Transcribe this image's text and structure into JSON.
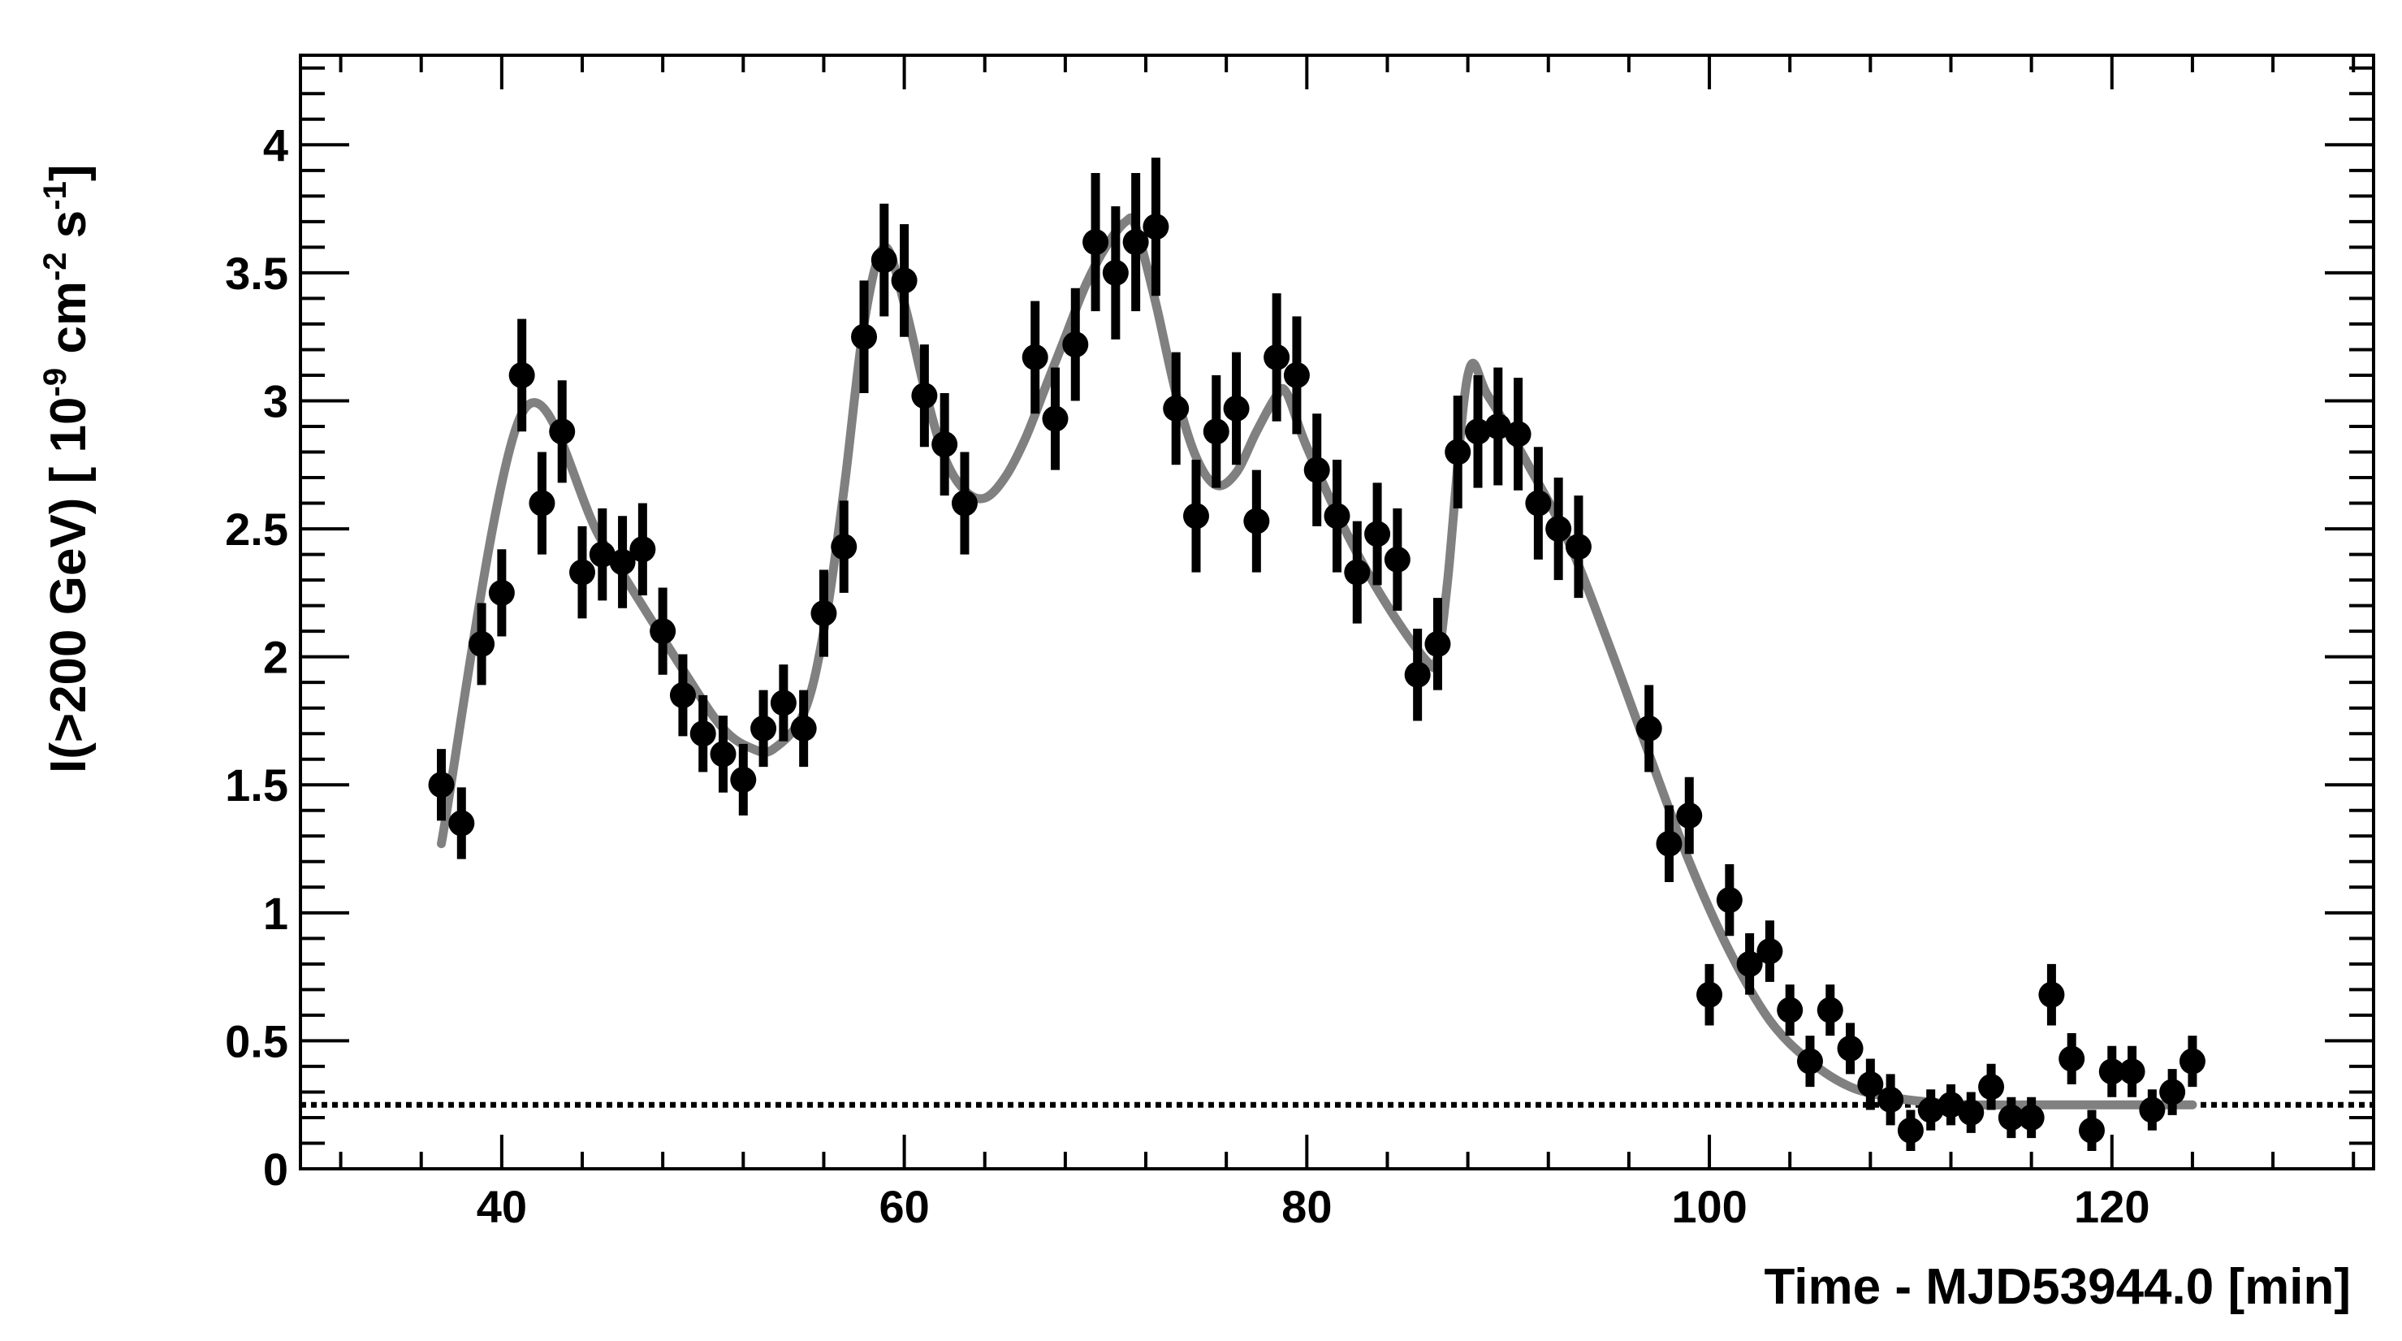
{
  "chart_data": {
    "type": "scatter",
    "xlabel": "Time - MJD53944.0 [min]",
    "ylabel_parts": {
      "prefix": "I(>200 GeV) [ 10",
      "exp1": "-9",
      "mid": " cm",
      "exp2": "-2",
      "mid2": " s",
      "exp3": "-1",
      "suffix": "]"
    },
    "xlim": [
      30,
      133
    ],
    "ylim": [
      0,
      4.35
    ],
    "xticks": [
      40,
      60,
      80,
      100,
      120
    ],
    "xtick_labels": [
      "40",
      "60",
      "80",
      "100",
      "120"
    ],
    "yticks": [
      0,
      0.5,
      1,
      1.5,
      2,
      2.5,
      3,
      3.5,
      4
    ],
    "ytick_labels": [
      "0",
      "0.5",
      "1",
      "1.5",
      "2",
      "2.5",
      "3",
      "3.5",
      "4"
    ],
    "baseline_level": 0.25,
    "series": [
      {
        "kind": "data_points_with_errors",
        "x": [
          37,
          38,
          39,
          40,
          41,
          42,
          43,
          44,
          45,
          46,
          47,
          48,
          49,
          50,
          51,
          52,
          53,
          54,
          55,
          56,
          57,
          58,
          59,
          60,
          61,
          62,
          63,
          66.5,
          67.5,
          68.5,
          69.5,
          70.5,
          71.5,
          72.5,
          73.5,
          74.5,
          75.5,
          76.5,
          77.5,
          78.5,
          79.5,
          80.5,
          81.5,
          82.5,
          83.5,
          84.5,
          85.5,
          86.5,
          87.5,
          88.5,
          89.5,
          90.5,
          91.5,
          92.5,
          93.5,
          97,
          98,
          99,
          100,
          101,
          102,
          103,
          104,
          105,
          106,
          107,
          108,
          109,
          110,
          111,
          112,
          113,
          114,
          115,
          116,
          117,
          118,
          119,
          120,
          121,
          122,
          123,
          124
        ],
        "y": [
          1.5,
          1.35,
          2.05,
          2.25,
          3.1,
          2.6,
          2.88,
          2.33,
          2.4,
          2.37,
          2.42,
          2.1,
          1.85,
          1.7,
          1.62,
          1.52,
          1.72,
          1.82,
          1.72,
          2.17,
          2.43,
          3.25,
          3.55,
          3.47,
          3.02,
          2.83,
          2.6,
          3.17,
          2.93,
          3.22,
          3.62,
          3.5,
          3.62,
          3.68,
          2.97,
          2.55,
          2.88,
          2.97,
          2.53,
          3.17,
          3.1,
          2.73,
          2.55,
          2.33,
          2.48,
          2.38,
          1.93,
          2.05,
          2.8,
          2.88,
          2.9,
          2.87,
          2.6,
          2.5,
          2.43,
          1.72,
          1.27,
          1.38,
          0.68,
          1.05,
          0.8,
          0.85,
          0.62,
          0.42,
          0.62,
          0.47,
          0.33,
          0.27,
          0.15,
          0.23,
          0.25,
          0.22,
          0.32,
          0.2,
          0.2,
          0.68,
          0.43,
          0.15,
          0.38,
          0.38,
          0.23,
          0.3,
          0.42
        ],
        "yerr": [
          0.14,
          0.14,
          0.16,
          0.17,
          0.22,
          0.2,
          0.2,
          0.18,
          0.18,
          0.18,
          0.18,
          0.17,
          0.16,
          0.15,
          0.15,
          0.14,
          0.15,
          0.15,
          0.15,
          0.17,
          0.18,
          0.22,
          0.22,
          0.22,
          0.2,
          0.2,
          0.2,
          0.22,
          0.2,
          0.22,
          0.27,
          0.26,
          0.27,
          0.27,
          0.22,
          0.22,
          0.22,
          0.22,
          0.2,
          0.25,
          0.23,
          0.22,
          0.22,
          0.2,
          0.2,
          0.2,
          0.18,
          0.18,
          0.22,
          0.22,
          0.23,
          0.22,
          0.22,
          0.2,
          0.2,
          0.17,
          0.15,
          0.15,
          0.12,
          0.14,
          0.12,
          0.12,
          0.1,
          0.1,
          0.1,
          0.1,
          0.1,
          0.1,
          0.08,
          0.08,
          0.08,
          0.08,
          0.09,
          0.08,
          0.08,
          0.12,
          0.1,
          0.08,
          0.1,
          0.1,
          0.08,
          0.09,
          0.1
        ]
      },
      {
        "kind": "fit_curve",
        "x": [
          37,
          41,
          45,
          49,
          51,
          52.5,
          53.5,
          55,
          56,
          57,
          58,
          59,
          60,
          61,
          62,
          63,
          64,
          65,
          66,
          67,
          68,
          69,
          70,
          71,
          71.5,
          72.5,
          73.5,
          74.5,
          75.5,
          76.5,
          77.5,
          78.5,
          79,
          80,
          82,
          84,
          86,
          86.5,
          87,
          88,
          89,
          91,
          93,
          95,
          97,
          99,
          101,
          103,
          105,
          107,
          109,
          111,
          113,
          116,
          120,
          124
        ],
        "y": [
          1.27,
          2.95,
          2.45,
          1.95,
          1.72,
          1.64,
          1.64,
          1.78,
          2.1,
          2.65,
          3.3,
          3.6,
          3.38,
          3.05,
          2.78,
          2.65,
          2.62,
          2.7,
          2.85,
          3.05,
          3.25,
          3.45,
          3.6,
          3.7,
          3.68,
          3.38,
          3.03,
          2.78,
          2.67,
          2.72,
          2.88,
          3.02,
          3.03,
          2.82,
          2.48,
          2.2,
          1.98,
          2.0,
          2.3,
          3.1,
          3.02,
          2.75,
          2.45,
          2.05,
          1.62,
          1.2,
          0.85,
          0.58,
          0.42,
          0.32,
          0.28,
          0.26,
          0.25,
          0.25,
          0.25,
          0.25
        ]
      }
    ]
  }
}
